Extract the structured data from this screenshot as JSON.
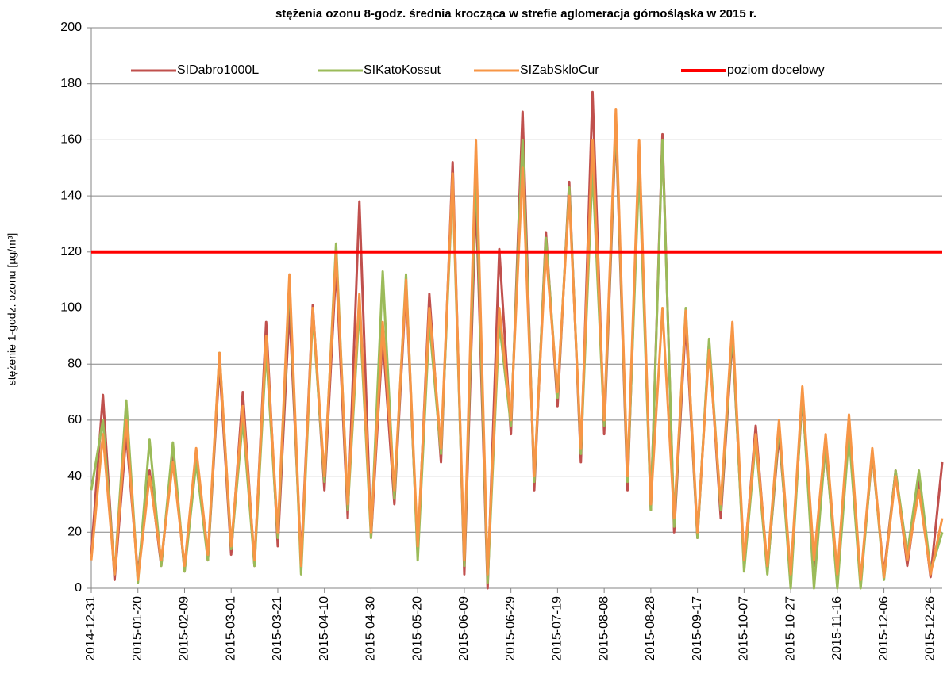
{
  "chart_data": {
    "type": "line",
    "title": "stężenia ozonu  8-godz. średnia krocząca w strefie aglomeracja górnośląska w 2015 r.",
    "ylabel": "stężenie 1-godz. ozonu [µg/m³]",
    "x": [
      "2014-12-31",
      "2015-01-05",
      "2015-01-10",
      "2015-01-15",
      "2015-01-20",
      "2015-01-25",
      "2015-01-30",
      "2015-02-04",
      "2015-02-09",
      "2015-02-14",
      "2015-02-19",
      "2015-02-24",
      "2015-03-01",
      "2015-03-06",
      "2015-03-11",
      "2015-03-16",
      "2015-03-21",
      "2015-03-26",
      "2015-03-31",
      "2015-04-05",
      "2015-04-10",
      "2015-04-15",
      "2015-04-20",
      "2015-04-25",
      "2015-04-30",
      "2015-05-05",
      "2015-05-10",
      "2015-05-15",
      "2015-05-20",
      "2015-05-25",
      "2015-05-30",
      "2015-06-04",
      "2015-06-09",
      "2015-06-14",
      "2015-06-19",
      "2015-06-24",
      "2015-06-29",
      "2015-07-04",
      "2015-07-09",
      "2015-07-14",
      "2015-07-19",
      "2015-07-24",
      "2015-07-29",
      "2015-08-03",
      "2015-08-08",
      "2015-08-13",
      "2015-08-18",
      "2015-08-23",
      "2015-08-28",
      "2015-09-02",
      "2015-09-07",
      "2015-09-12",
      "2015-09-17",
      "2015-09-22",
      "2015-09-27",
      "2015-10-02",
      "2015-10-07",
      "2015-10-12",
      "2015-10-17",
      "2015-10-22",
      "2015-10-27",
      "2015-11-01",
      "2015-11-06",
      "2015-11-11",
      "2015-11-16",
      "2015-11-21",
      "2015-11-26",
      "2015-12-01",
      "2015-12-06",
      "2015-12-11",
      "2015-12-16",
      "2015-12-21",
      "2015-12-26",
      "2015-12-31"
    ],
    "series": [
      {
        "name": "SIDabro1000L",
        "color": "#c0504d",
        "values": [
          12,
          69,
          3,
          55,
          5,
          42,
          8,
          50,
          6,
          48,
          10,
          80,
          12,
          70,
          8,
          95,
          15,
          100,
          10,
          101,
          35,
          115,
          25,
          138,
          18,
          90,
          30,
          108,
          12,
          105,
          45,
          152,
          5,
          140,
          0,
          121,
          55,
          170,
          35,
          127,
          65,
          145,
          45,
          177,
          55,
          165,
          35,
          157,
          28,
          162,
          20,
          95,
          18,
          88,
          25,
          90,
          8,
          58,
          6,
          55,
          4,
          68,
          8,
          50,
          4,
          60,
          2,
          48,
          5,
          42,
          8,
          38,
          4,
          45
        ]
      },
      {
        "name": "SIKatoKossut",
        "color": "#9bbb59",
        "values": [
          35,
          60,
          5,
          67,
          2,
          53,
          8,
          52,
          6,
          45,
          10,
          84,
          14,
          60,
          8,
          85,
          18,
          110,
          5,
          98,
          38,
          123,
          28,
          100,
          18,
          113,
          32,
          112,
          10,
          95,
          48,
          145,
          8,
          150,
          2,
          95,
          58,
          160,
          38,
          125,
          68,
          143,
          48,
          150,
          58,
          168,
          38,
          150,
          28,
          160,
          22,
          100,
          18,
          89,
          28,
          92,
          6,
          53,
          5,
          58,
          0,
          70,
          0,
          52,
          0,
          55,
          0,
          49,
          3,
          42,
          12,
          42,
          6,
          20
        ]
      },
      {
        "name": "SIZabSkloCur",
        "color": "#f79646",
        "values": [
          10,
          55,
          5,
          60,
          3,
          40,
          10,
          45,
          8,
          50,
          12,
          84,
          15,
          65,
          10,
          90,
          20,
          112,
          8,
          100,
          40,
          120,
          30,
          105,
          20,
          95,
          35,
          110,
          15,
          100,
          50,
          148,
          10,
          160,
          5,
          100,
          60,
          150,
          40,
          120,
          70,
          140,
          50,
          160,
          60,
          171,
          40,
          160,
          30,
          100,
          25,
          99,
          20,
          85,
          30,
          95,
          10,
          55,
          8,
          60,
          5,
          72,
          10,
          55,
          5,
          62,
          3,
          50,
          4,
          40,
          10,
          35,
          5,
          25
        ]
      }
    ],
    "hlines": [
      {
        "name": "poziom docelowy",
        "color": "#ff0000",
        "value": 120
      }
    ],
    "xlim": [
      "2014-12-31",
      "2015-12-31"
    ],
    "xticks": [
      "2014-12-31",
      "2015-01-20",
      "2015-02-09",
      "2015-03-01",
      "2015-03-21",
      "2015-04-10",
      "2015-04-30",
      "2015-05-20",
      "2015-06-09",
      "2015-06-29",
      "2015-07-19",
      "2015-08-08",
      "2015-08-28",
      "2015-09-17",
      "2015-10-07",
      "2015-10-27",
      "2015-11-16",
      "2015-12-06",
      "2015-12-26"
    ],
    "ylim": [
      0,
      200
    ],
    "yticks": [
      0,
      20,
      40,
      60,
      80,
      100,
      120,
      140,
      160,
      180,
      200
    ],
    "grid": true,
    "legend": "top"
  }
}
